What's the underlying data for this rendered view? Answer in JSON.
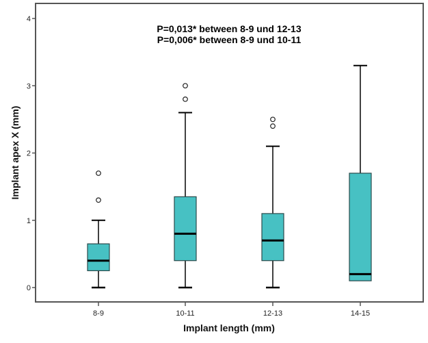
{
  "chart_data": {
    "type": "boxplot",
    "title": "",
    "xlabel": "Implant length (mm)",
    "ylabel": "Implant apex X (mm)",
    "ylim": [
      -0.22,
      4.22
    ],
    "yticks": [
      0,
      1,
      2,
      3,
      4
    ],
    "ytick_labels": [
      "0",
      "1",
      "2",
      "3",
      "4"
    ],
    "grid": false,
    "categories": [
      "8-9",
      "10-11",
      "12-13",
      "14-15"
    ],
    "boxes": [
      {
        "category": "8-9",
        "whisker_low": 0,
        "q1": 0.25,
        "median": 0.4,
        "q3": 0.65,
        "whisker_high": 1.0,
        "outliers": [
          1.3,
          1.7
        ]
      },
      {
        "category": "10-11",
        "whisker_low": 0,
        "q1": 0.4,
        "median": 0.8,
        "q3": 1.35,
        "whisker_high": 2.6,
        "outliers": [
          2.8,
          3.0
        ]
      },
      {
        "category": "12-13",
        "whisker_low": 0,
        "q1": 0.4,
        "median": 0.7,
        "q3": 1.1,
        "whisker_high": 2.1,
        "outliers": [
          2.4,
          2.5
        ]
      },
      {
        "category": "14-15",
        "whisker_low": 0.1,
        "q1": 0.1,
        "median": 0.2,
        "q3": 1.7,
        "whisker_high": 3.3,
        "outliers": []
      }
    ],
    "annotations": [
      "P=0,013* between 8-9 und 12-13",
      "P=0,006* between 8-9 und 10-11"
    ],
    "colors": {
      "box_fill": "#47c1c3",
      "box_stroke": "#2b4a4b",
      "frame": "#555555"
    }
  }
}
